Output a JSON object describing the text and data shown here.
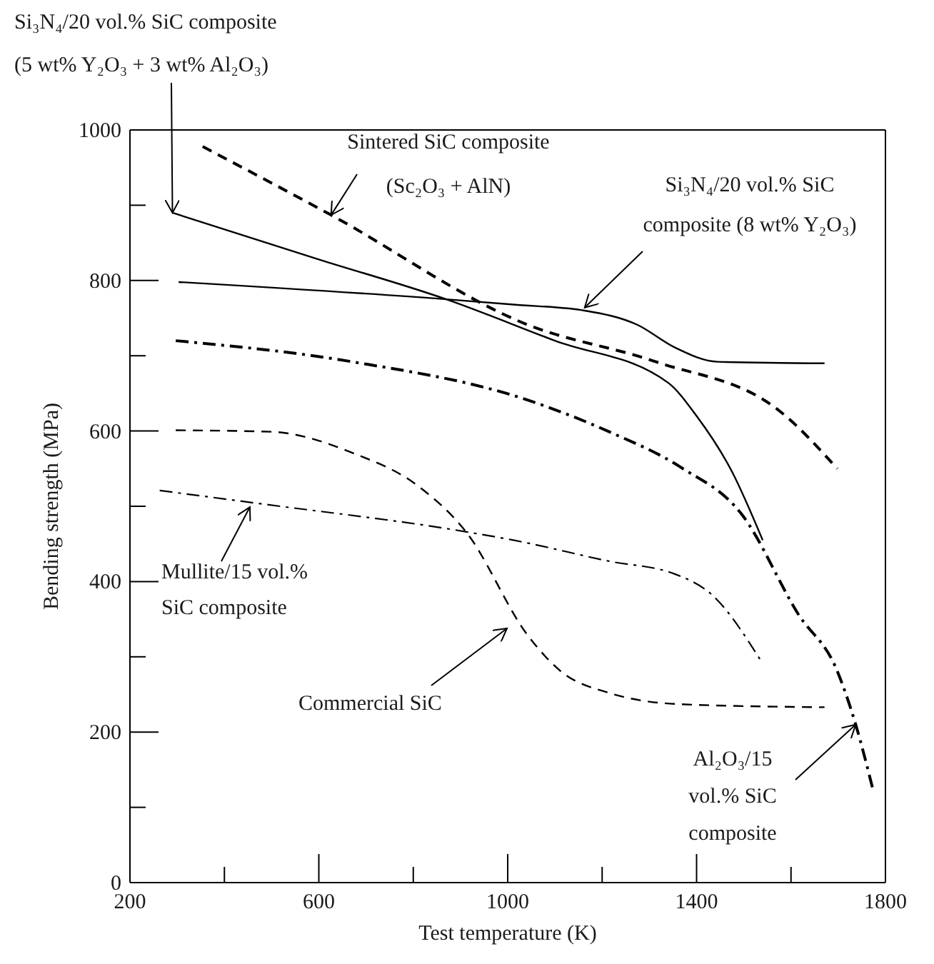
{
  "chart_data": {
    "type": "line",
    "xlabel": "Test temperature (K)",
    "ylabel": "Bending strength (MPa)",
    "xlim": [
      200,
      1800
    ],
    "xticks": [
      200,
      {
        "value": 400,
        "label": null
      },
      600,
      {
        "value": 800,
        "label": null
      },
      1000,
      {
        "value": 1200,
        "label": null
      },
      1400,
      {
        "value": 1600,
        "label": null
      },
      1800
    ],
    "ylim": [
      0,
      1000
    ],
    "yticks": [
      0,
      {
        "value": 100,
        "label": null
      },
      200,
      {
        "value": 300,
        "label": null
      },
      400,
      {
        "value": 500,
        "label": null
      },
      600,
      {
        "value": 700,
        "label": null
      },
      800,
      {
        "value": 900,
        "label": null
      },
      1000
    ],
    "grid": false,
    "legend": false,
    "marker": "none",
    "series": [
      {
        "color": "#000000",
        "line_style": "solid",
        "x": [
          290,
          600,
          870,
          1100,
          1340,
          1400,
          1475,
          1540
        ],
        "values": [
          890,
          828,
          775,
          720,
          664,
          620,
          546,
          455
        ]
      },
      {
        "color": "#000000",
        "line_style": "dashed",
        "x": [
          354,
          626,
          1043,
          1314,
          1577,
          1698
        ],
        "values": [
          978,
          887,
          741,
          692,
          626,
          550
        ]
      },
      {
        "color": "#000000",
        "line_style": "solid",
        "x": [
          303,
          870,
          1012,
          1163,
          1275,
          1354,
          1444,
          1671
        ],
        "values": [
          798,
          775,
          768,
          760,
          741,
          711,
          692,
          690
        ]
      },
      {
        "color": "#000000",
        "line_style": "dashdot",
        "x": [
          297,
          671,
          1043,
          1215,
          1366,
          1496,
          1616,
          1698,
          1737,
          1773
        ],
        "values": [
          720,
          692,
          641,
          599,
          552,
          489,
          356,
          281,
          210,
          125
        ]
      },
      {
        "color": "#000000",
        "line_style": "dashed",
        "x": [
          297,
          499,
          671,
          810,
          913,
          1043,
          1112,
          1215,
          1366,
          1671
        ],
        "values": [
          601,
          599,
          571,
          527,
          465,
          328,
          281,
          252,
          237,
          233
        ]
      },
      {
        "color": "#000000",
        "line_style": "dashdot",
        "x": [
          263,
          469,
          913,
          1012,
          1215,
          1354,
          1435,
          1535
        ],
        "values": [
          521,
          504,
          466,
          455,
          427,
          410,
          381,
          296
        ]
      }
    ],
    "annotations": [
      {
        "text": "Si₃N₄/20 vol.% SiC composite\n(5 wt% Y₂O₃ + 3 wt% Al₂O₃)",
        "x": 290,
        "y": 890
      },
      {
        "text": "Sintered SiC composite\n(Sc₂O₃ + AlN)",
        "x": 626,
        "y": 887
      },
      {
        "text": "Si₃N₄/20 vol.% SiC\ncomposite (8 wt% Y₂O₃)",
        "x": 1163,
        "y": 764
      },
      {
        "text": "Mullite/15 vol.%\nSiC composite",
        "x": 454,
        "y": 499
      },
      "Commercial SiC",
      {
        "text": "Al₂O₃/15\nvol.% SiC\ncomposite",
        "x": 1737,
        "y": 210
      }
    ]
  }
}
